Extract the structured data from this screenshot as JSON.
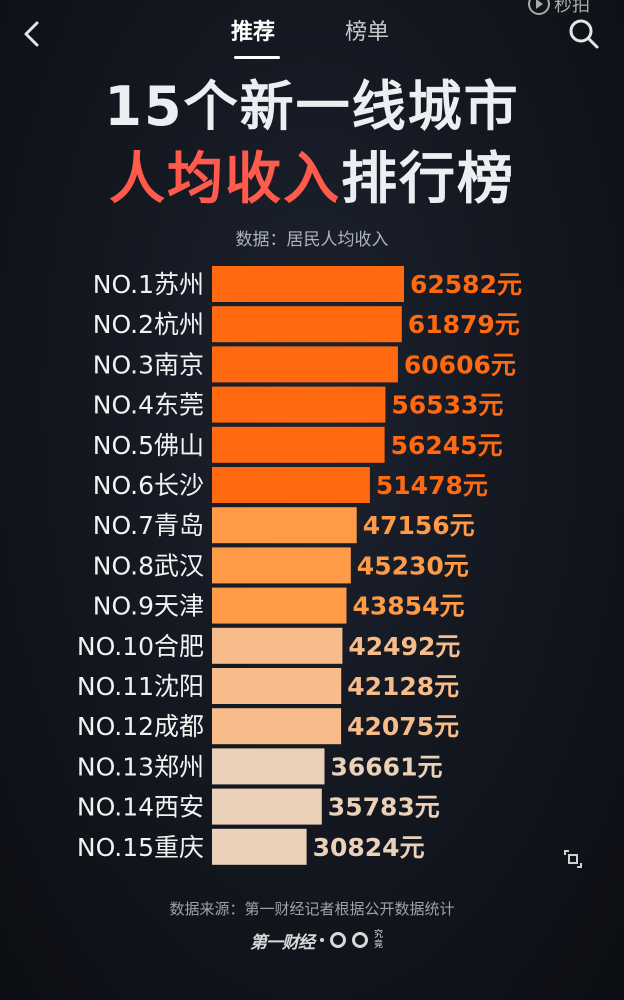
{
  "header": {
    "tab_recommend": "推荐",
    "tab_ranking": "榜单",
    "brand_text": "秒拍"
  },
  "title_line1": "15个新一线城市",
  "title_line2_highlight": "人均收入",
  "title_line2_rest": "排行榜",
  "subtitle": "数据：居民人均收入",
  "footer": {
    "source": "数据来源：第一财经记者根据公开数据统计",
    "logo_text": "第一财经",
    "logo_small": "究竟"
  },
  "colors": {
    "title_red": "#ff5a4c",
    "bar_orange": "#ff6a10",
    "bar_mid": "#ff9a46",
    "bar_light": "#f7bc8a",
    "bar_pale": "#ead1b8",
    "label_orange": "#ff6a10"
  },
  "chart_data": {
    "type": "bar",
    "orientation": "horizontal",
    "title": "15个新一线城市人均收入排行榜",
    "subtitle": "数据：居民人均收入",
    "categories": [
      "NO.1苏州",
      "NO.2杭州",
      "NO.3南京",
      "NO.4东莞",
      "NO.5佛山",
      "NO.6长沙",
      "NO.7青岛",
      "NO.8武汉",
      "NO.9天津",
      "NO.10合肥",
      "NO.11沈阳",
      "NO.12成都",
      "NO.13郑州",
      "NO.14西安",
      "NO.15重庆"
    ],
    "values": [
      62582,
      61879,
      60606,
      56533,
      56245,
      51478,
      47156,
      45230,
      43854,
      42492,
      42128,
      42075,
      36661,
      35783,
      30824
    ],
    "value_labels": [
      "62582元",
      "61879元",
      "60606元",
      "56533元",
      "56245元",
      "51478元",
      "47156元",
      "45230元",
      "43854元",
      "42492元",
      "42128元",
      "42075元",
      "36661元",
      "35783元",
      "30824元"
    ],
    "unit": "元",
    "value_axis_range": [
      0,
      62582
    ],
    "grid": false,
    "legend": "none"
  }
}
